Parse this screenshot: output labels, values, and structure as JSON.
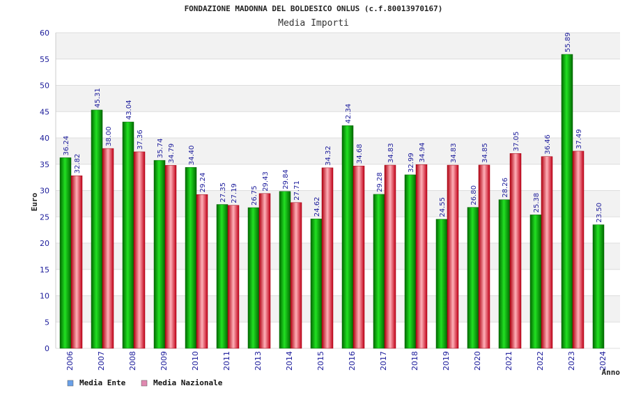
{
  "chart_data": {
    "type": "bar",
    "title": "FONDAZIONE MADONNA DEL BOLDESICO ONLUS (c.f.80013970167)",
    "subtitle": "Media Importi",
    "xlabel": "Anno",
    "ylabel": "Euro",
    "ylim": [
      0,
      60
    ],
    "yticks": [
      0,
      5,
      10,
      15,
      20,
      25,
      30,
      35,
      40,
      45,
      50,
      55,
      60
    ],
    "categories": [
      "2006",
      "2007",
      "2008",
      "2009",
      "2010",
      "2011",
      "2013",
      "2014",
      "2015",
      "2016",
      "2017",
      "2018",
      "2019",
      "2020",
      "2021",
      "2022",
      "2023",
      "2024"
    ],
    "series": [
      {
        "name": "Media Ente",
        "color": "#00b000",
        "values": [
          36.24,
          45.31,
          43.04,
          35.74,
          34.4,
          27.35,
          26.75,
          29.84,
          24.62,
          42.34,
          29.28,
          32.99,
          24.55,
          26.8,
          28.26,
          25.38,
          55.89,
          23.5
        ],
        "labels": [
          "36.24",
          "45.31",
          "43.04",
          "35.74",
          "34.40",
          "27.35",
          "26.75",
          "29.84",
          "24.62",
          "42.34",
          "29.28",
          "32.99",
          "24.55",
          "26.80",
          "28.26",
          "25.38",
          "55.89",
          "23.50"
        ]
      },
      {
        "name": "Media Nazionale",
        "color": "#e01020",
        "values": [
          32.82,
          38.0,
          37.36,
          34.79,
          29.24,
          27.19,
          29.43,
          27.71,
          34.32,
          34.68,
          34.83,
          34.94,
          34.83,
          34.85,
          37.05,
          36.46,
          37.49,
          null
        ],
        "labels": [
          "32.82",
          "38.00",
          "37.36",
          "34.79",
          "29.24",
          "27.19",
          "29.43",
          "27.71",
          "34.32",
          "34.68",
          "34.83",
          "34.94",
          "34.83",
          "34.85",
          "37.05",
          "36.46",
          "37.49",
          null
        ]
      }
    ],
    "legend": {
      "position": "bottom-left",
      "items": [
        {
          "label": "Media Ente",
          "swatch": "#6aa0e8"
        },
        {
          "label": "Media Nazionale",
          "swatch": "#e088b0"
        }
      ]
    },
    "grid": true
  }
}
